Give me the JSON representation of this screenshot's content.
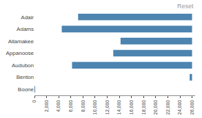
{
  "chart_data": {
    "type": "bar",
    "orientation": "horizontal",
    "categories": [
      "Adair",
      "Adams",
      "Allamakee",
      "Appanoose",
      "Audubon",
      "Benton",
      "Boone"
    ],
    "base": [
      7200,
      4500,
      14200,
      13000,
      6200,
      25600,
      0
    ],
    "values": [
      18800,
      21500,
      11800,
      13000,
      19800,
      400,
      50
    ],
    "color": "#4d84b0",
    "xlim": [
      0,
      26500
    ],
    "xticks": [
      0,
      {
        "value": 2000,
        "label": "2,000"
      },
      {
        "value": 4000,
        "label": "4,000"
      },
      {
        "value": 6000,
        "label": "6,000"
      },
      {
        "value": 8000,
        "label": "8,000"
      },
      {
        "value": 10000,
        "label": "10,000"
      },
      {
        "value": 12000,
        "label": "12,000"
      },
      {
        "value": 14000,
        "label": "14,000"
      },
      {
        "value": 16000,
        "label": "16,000"
      },
      {
        "value": 18000,
        "label": "18,000"
      },
      {
        "value": 20000,
        "label": "20,000"
      },
      {
        "value": 22000,
        "label": "22,000"
      },
      {
        "value": 24000,
        "label": "24,000"
      },
      {
        "value": 26000,
        "label": "26,000"
      }
    ],
    "grid": false,
    "annotations": [
      {
        "text": "Reset"
      }
    ]
  }
}
